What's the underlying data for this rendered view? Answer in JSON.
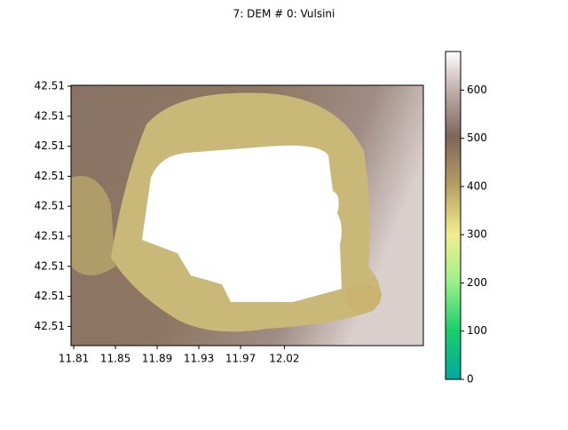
{
  "chart_data": {
    "type": "image",
    "title": "7: DEM # 0: Vulsini",
    "colormap": "terrain",
    "xlim": [
      11.8104,
      12.1483
    ],
    "xticks": [
      {
        "value": 11.813,
        "label": "11.81"
      },
      {
        "value": 11.853,
        "label": "11.85"
      },
      {
        "value": 11.893,
        "label": "11.89"
      },
      {
        "value": 11.933,
        "label": "11.93"
      },
      {
        "value": 11.973,
        "label": "11.97"
      },
      {
        "value": 12.015,
        "label": "12.02"
      }
    ],
    "ylim": [
      42.50536,
      42.51403
    ],
    "yticks": [
      {
        "value": 42.514,
        "label": "42.51"
      },
      {
        "value": 42.513,
        "label": "42.51"
      },
      {
        "value": 42.512,
        "label": "42.51"
      },
      {
        "value": 42.511,
        "label": "42.51"
      },
      {
        "value": 42.51,
        "label": "42.51"
      },
      {
        "value": 42.509,
        "label": "42.51"
      },
      {
        "value": 42.508,
        "label": "42.51"
      },
      {
        "value": 42.507,
        "label": "42.51"
      },
      {
        "value": 42.506,
        "label": "42.51"
      }
    ],
    "clim": [
      0,
      680
    ],
    "cticks": [
      0,
      100,
      200,
      300,
      400,
      500,
      600
    ]
  }
}
